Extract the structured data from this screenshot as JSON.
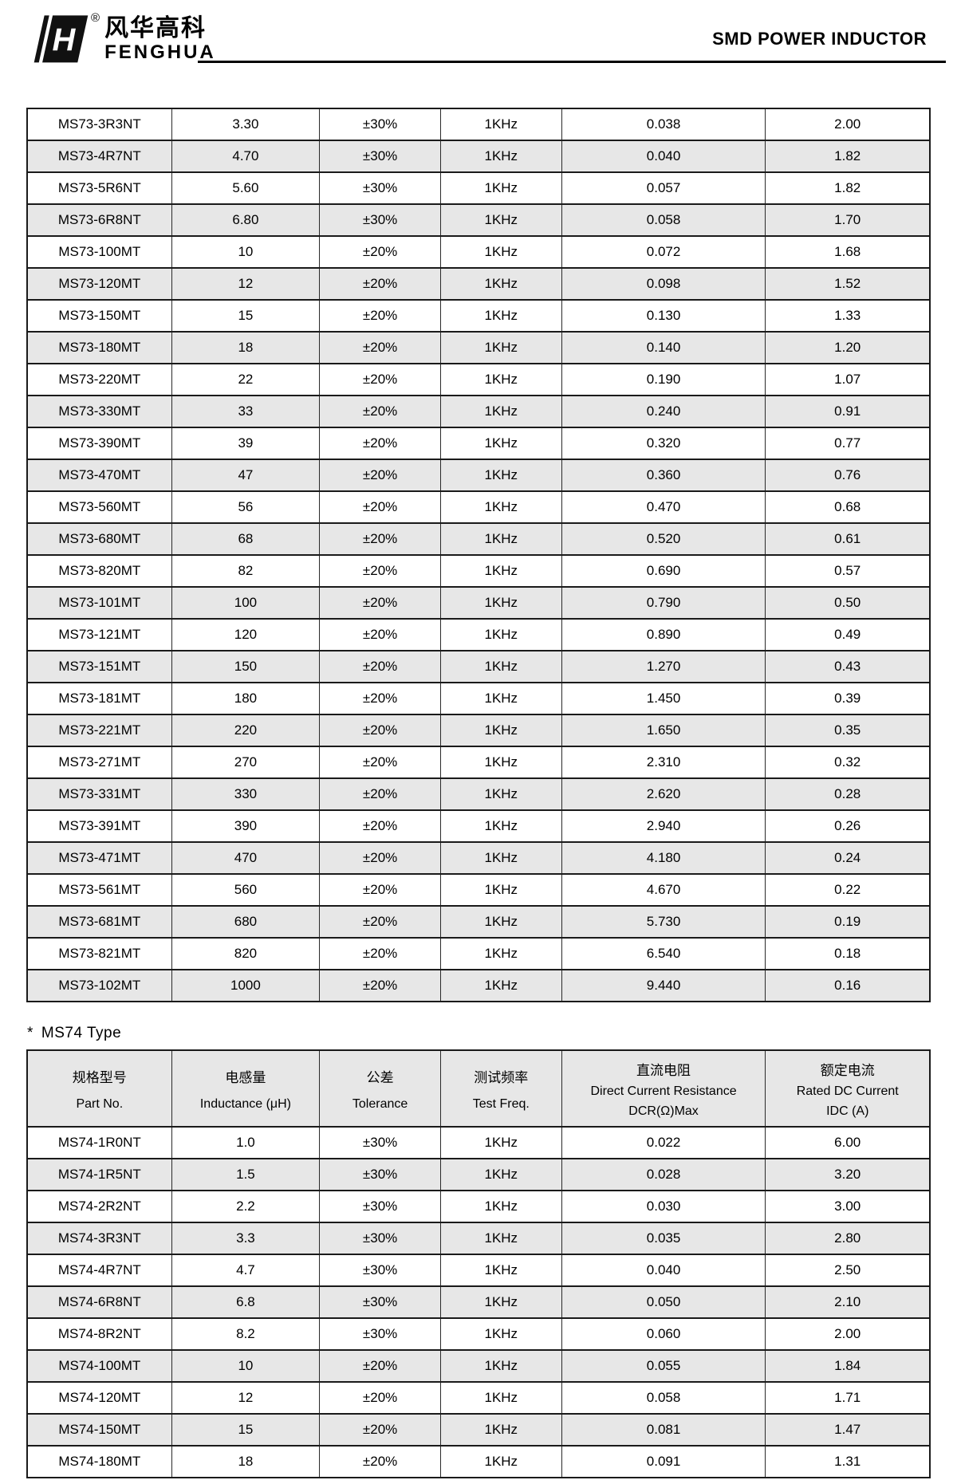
{
  "header": {
    "brand_cn": "风华高科",
    "brand_en": "FENGHUA",
    "registered": "®",
    "logo_letter": "H",
    "title": "SMD POWER INDUCTOR"
  },
  "ms74_section": {
    "star": "*",
    "label": "MS74 Type"
  },
  "columns": {
    "part_no": {
      "cn": "规格型号",
      "en": "Part No."
    },
    "inductance": {
      "cn": "电感量",
      "en": "Inductance (μH)"
    },
    "tolerance": {
      "cn": "公差",
      "en": "Tolerance"
    },
    "test_freq": {
      "cn": "测试频率",
      "en": "Test Freq."
    },
    "dcr": {
      "cn": "直流电阻",
      "en": "Direct Current Resistance",
      "unit": "DCR(Ω)Max"
    },
    "idc": {
      "cn": "额定电流",
      "en": "Rated DC Current",
      "unit": "IDC (A)"
    }
  },
  "ms73_table": {
    "rows": [
      [
        "MS73-3R3NT",
        "3.30",
        "±30%",
        "1KHz",
        "0.038",
        "2.00"
      ],
      [
        "MS73-4R7NT",
        "4.70",
        "±30%",
        "1KHz",
        "0.040",
        "1.82"
      ],
      [
        "MS73-5R6NT",
        "5.60",
        "±30%",
        "1KHz",
        "0.057",
        "1.82"
      ],
      [
        "MS73-6R8NT",
        "6.80",
        "±30%",
        "1KHz",
        "0.058",
        "1.70"
      ],
      [
        "MS73-100MT",
        "10",
        "±20%",
        "1KHz",
        "0.072",
        "1.68"
      ],
      [
        "MS73-120MT",
        "12",
        "±20%",
        "1KHz",
        "0.098",
        "1.52"
      ],
      [
        "MS73-150MT",
        "15",
        "±20%",
        "1KHz",
        "0.130",
        "1.33"
      ],
      [
        "MS73-180MT",
        "18",
        "±20%",
        "1KHz",
        "0.140",
        "1.20"
      ],
      [
        "MS73-220MT",
        "22",
        "±20%",
        "1KHz",
        "0.190",
        "1.07"
      ],
      [
        "MS73-330MT",
        "33",
        "±20%",
        "1KHz",
        "0.240",
        "0.91"
      ],
      [
        "MS73-390MT",
        "39",
        "±20%",
        "1KHz",
        "0.320",
        "0.77"
      ],
      [
        "MS73-470MT",
        "47",
        "±20%",
        "1KHz",
        "0.360",
        "0.76"
      ],
      [
        "MS73-560MT",
        "56",
        "±20%",
        "1KHz",
        "0.470",
        "0.68"
      ],
      [
        "MS73-680MT",
        "68",
        "±20%",
        "1KHz",
        "0.520",
        "0.61"
      ],
      [
        "MS73-820MT",
        "82",
        "±20%",
        "1KHz",
        "0.690",
        "0.57"
      ],
      [
        "MS73-101MT",
        "100",
        "±20%",
        "1KHz",
        "0.790",
        "0.50"
      ],
      [
        "MS73-121MT",
        "120",
        "±20%",
        "1KHz",
        "0.890",
        "0.49"
      ],
      [
        "MS73-151MT",
        "150",
        "±20%",
        "1KHz",
        "1.270",
        "0.43"
      ],
      [
        "MS73-181MT",
        "180",
        "±20%",
        "1KHz",
        "1.450",
        "0.39"
      ],
      [
        "MS73-221MT",
        "220",
        "±20%",
        "1KHz",
        "1.650",
        "0.35"
      ],
      [
        "MS73-271MT",
        "270",
        "±20%",
        "1KHz",
        "2.310",
        "0.32"
      ],
      [
        "MS73-331MT",
        "330",
        "±20%",
        "1KHz",
        "2.620",
        "0.28"
      ],
      [
        "MS73-391MT",
        "390",
        "±20%",
        "1KHz",
        "2.940",
        "0.26"
      ],
      [
        "MS73-471MT",
        "470",
        "±20%",
        "1KHz",
        "4.180",
        "0.24"
      ],
      [
        "MS73-561MT",
        "560",
        "±20%",
        "1KHz",
        "4.670",
        "0.22"
      ],
      [
        "MS73-681MT",
        "680",
        "±20%",
        "1KHz",
        "5.730",
        "0.19"
      ],
      [
        "MS73-821MT",
        "820",
        "±20%",
        "1KHz",
        "6.540",
        "0.18"
      ],
      [
        "MS73-102MT",
        "1000",
        "±20%",
        "1KHz",
        "9.440",
        "0.16"
      ]
    ]
  },
  "ms74_table": {
    "rows": [
      [
        "MS74-1R0NT",
        "1.0",
        "±30%",
        "1KHz",
        "0.022",
        "6.00"
      ],
      [
        "MS74-1R5NT",
        "1.5",
        "±30%",
        "1KHz",
        "0.028",
        "3.20"
      ],
      [
        "MS74-2R2NT",
        "2.2",
        "±30%",
        "1KHz",
        "0.030",
        "3.00"
      ],
      [
        "MS74-3R3NT",
        "3.3",
        "±30%",
        "1KHz",
        "0.035",
        "2.80"
      ],
      [
        "MS74-4R7NT",
        "4.7",
        "±30%",
        "1KHz",
        "0.040",
        "2.50"
      ],
      [
        "MS74-6R8NT",
        "6.8",
        "±30%",
        "1KHz",
        "0.050",
        "2.10"
      ],
      [
        "MS74-8R2NT",
        "8.2",
        "±30%",
        "1KHz",
        "0.060",
        "2.00"
      ],
      [
        "MS74-100MT",
        "10",
        "±20%",
        "1KHz",
        "0.055",
        "1.84"
      ],
      [
        "MS74-120MT",
        "12",
        "±20%",
        "1KHz",
        "0.058",
        "1.71"
      ],
      [
        "MS74-150MT",
        "15",
        "±20%",
        "1KHz",
        "0.081",
        "1.47"
      ],
      [
        "MS74-180MT",
        "18",
        "±20%",
        "1KHz",
        "0.091",
        "1.31"
      ]
    ]
  },
  "colors": {
    "row_alt": "#e7e7e7",
    "border": "#1a1a1a",
    "text": "#000000"
  }
}
